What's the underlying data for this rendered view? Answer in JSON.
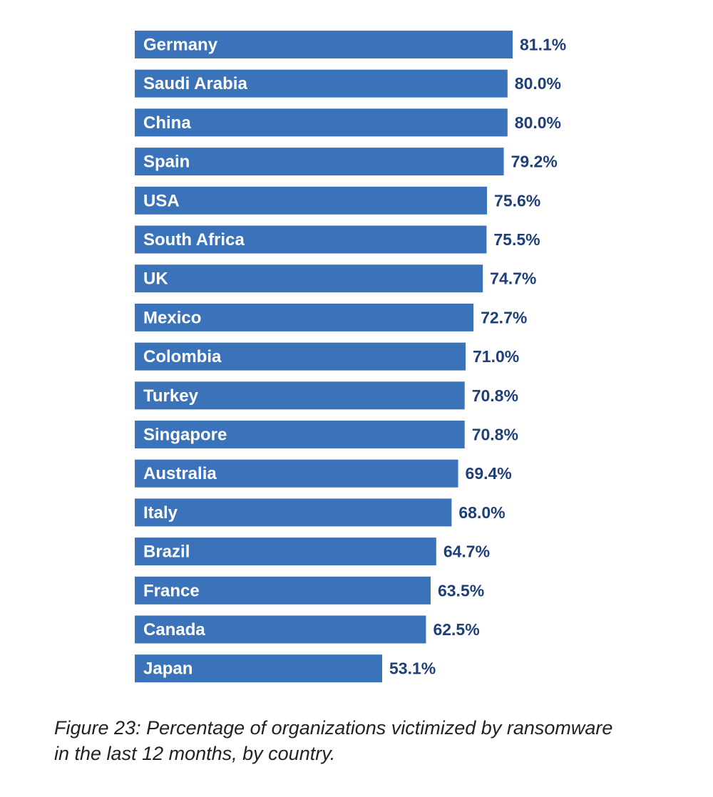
{
  "chart_data": {
    "type": "bar",
    "orientation": "horizontal",
    "categories": [
      "Germany",
      "Saudi Arabia",
      "China",
      "Spain",
      "USA",
      "South Africa",
      "UK",
      "Mexico",
      "Colombia",
      "Turkey",
      "Singapore",
      "Australia",
      "Italy",
      "Brazil",
      "France",
      "Canada",
      "Japan"
    ],
    "values": [
      81.1,
      80.0,
      80.0,
      79.2,
      75.6,
      75.5,
      74.7,
      72.7,
      71.0,
      70.8,
      70.8,
      69.4,
      68.0,
      64.7,
      63.5,
      62.5,
      53.1
    ],
    "value_labels": [
      "81.1%",
      "80.0%",
      "80.0%",
      "79.2%",
      "75.6%",
      "75.5%",
      "74.7%",
      "72.7%",
      "71.0%",
      "70.8%",
      "70.8%",
      "69.4%",
      "68.0%",
      "64.7%",
      "63.5%",
      "62.5%",
      "53.1%"
    ],
    "unit": "%",
    "grid": false,
    "legend": "none",
    "colors": {
      "bar": "#3a73b9",
      "bar_label": "#ffffff",
      "value_label": "#1f3f78"
    }
  },
  "caption": {
    "line1": "Figure 23: Percentage of organizations victimized by ransomware",
    "line2": "in the last 12 months, by country."
  }
}
